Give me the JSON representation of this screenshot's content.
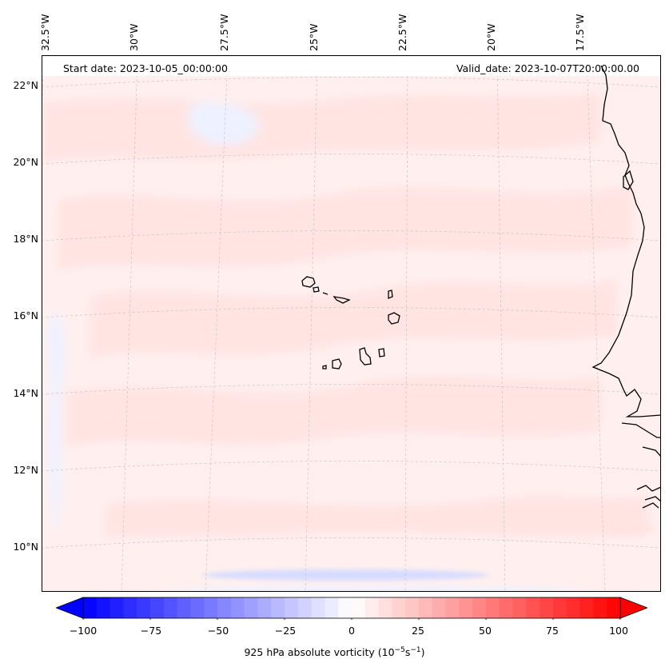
{
  "map": {
    "start_date": "Start date: 2023-10-05_00:00:00",
    "valid_date": "Valid_date: 2023-10-07T20:00:00.00",
    "lon_ticks": [
      "32.5°W",
      "30°W",
      "27.5°W",
      "25°W",
      "22.5°W",
      "20°W",
      "17.5°W"
    ],
    "lat_ticks": [
      "22°N",
      "20°N",
      "18°N",
      "16°N",
      "14°N",
      "12°N",
      "10°N"
    ],
    "islands": [
      "Santo Antão",
      "São Vicente",
      "São Nicolau",
      "Sal",
      "Boa Vista",
      "Santiago",
      "Fogo",
      "Brava",
      "Maio"
    ]
  },
  "colorbar": {
    "label_prefix": "925 hPa absolute vorticity (10",
    "label_exp1": "−5",
    "label_mid": "s",
    "label_exp2": "−1",
    "label_suffix": ")",
    "ticks": [
      "−100",
      "−75",
      "−50",
      "−25",
      "0",
      "25",
      "50",
      "75",
      "100"
    ],
    "min": -100,
    "max": 100,
    "levels": 40,
    "low_color": "#0000ff",
    "mid_color": "#ffffff",
    "high_color": "#ff0000"
  },
  "colors": {
    "background_red": "#fff0ef",
    "light_red": "#ffe4e2",
    "light_blue": "#eef1ff",
    "blue_band": "#d6dbff",
    "coast": "#000000"
  }
}
